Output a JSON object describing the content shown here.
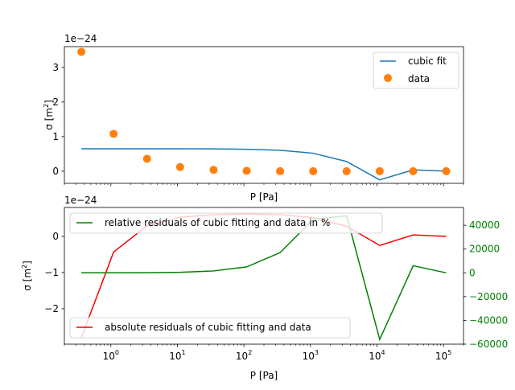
{
  "chart_data": [
    {
      "type": "line",
      "xscale": "log",
      "xlim": [
        0.2,
        200000
      ],
      "ylim": [
        -3.5e-25,
        3.6e-24
      ],
      "xlabel": "P [Pa]",
      "ylabel": "σ [m²]",
      "ylabel_base": "σ [m",
      "ylabel_sup": "2",
      "ylabel_end": "]",
      "offset_text": "1e−24",
      "x_ticklabels": [],
      "y_ticks": [
        0,
        1e-24,
        2e-24,
        3e-24
      ],
      "y_ticklabels": [
        "0",
        "1",
        "2",
        "3"
      ],
      "legend": {
        "position": "upper right",
        "entries": [
          "cubic fit",
          "data"
        ]
      },
      "grid": false,
      "series": [
        {
          "name": "cubic fit",
          "kind": "line",
          "color": "#1f77b4",
          "x": [
            0.36,
            1.1,
            3.5,
            11,
            35,
            110,
            350,
            1100,
            3500,
            11000,
            35000,
            110000
          ],
          "y": [
            6.5e-25,
            6.5e-25,
            6.5e-25,
            6.5e-25,
            6.45e-25,
            6.35e-25,
            6.05e-25,
            5.2e-25,
            2.8e-25,
            -2.5e-25,
            4e-26,
            0.0
          ]
        },
        {
          "name": "data",
          "kind": "scatter",
          "color": "#ff7f0e",
          "x": [
            0.36,
            1.1,
            3.5,
            11,
            35,
            110,
            350,
            1100,
            3500,
            11000,
            35000,
            110000
          ],
          "y": [
            3.45e-24,
            1.08e-24,
            3.6e-25,
            1.2e-25,
            4e-26,
            1.2e-26,
            0.0,
            0.0,
            0.0,
            0.0,
            0.0,
            0.0
          ]
        }
      ]
    },
    {
      "type": "line",
      "xscale": "log",
      "xlim": [
        0.2,
        200000
      ],
      "ylim": [
        -2.98e-24,
        8e-25
      ],
      "xlabel": "P [Pa]",
      "ylabel": "σ [m²]",
      "ylabel_base": "σ [m",
      "ylabel_sup": "2",
      "ylabel_end": "]",
      "offset_text": "1e−24",
      "x_ticks": [
        1,
        10,
        100,
        1000,
        10000,
        100000
      ],
      "x_tick_exponents": [
        "0",
        "1",
        "2",
        "3",
        "4",
        "5"
      ],
      "y_ticks": [
        -2e-24,
        -1e-24,
        0
      ],
      "y_ticklabels": [
        "−2",
        "−1",
        "0"
      ],
      "y2lim": [
        -60000,
        55000
      ],
      "y2_ticks": [
        -60000,
        -40000,
        -20000,
        0,
        20000,
        40000
      ],
      "y2_ticklabels": [
        "−60000",
        "−40000",
        "−20000",
        "0",
        "20000",
        "40000"
      ],
      "y2_color": "#008000",
      "legend": [
        {
          "position": "upper left",
          "entries": [
            "relative residuals of cubic fitting and data in %"
          ]
        },
        {
          "position": "lower left",
          "entries": [
            "absolute residuals of cubic fitting and data"
          ]
        }
      ],
      "grid": false,
      "series": [
        {
          "name": "absolute residuals of cubic fitting and data",
          "axis": "left",
          "color": "#ff0000",
          "x": [
            0.36,
            1.1,
            3.5,
            11,
            35,
            110,
            350,
            1100,
            3500,
            11000,
            35000,
            110000
          ],
          "y": [
            -2.8e-24,
            -4.3e-25,
            2.9e-25,
            5.3e-25,
            6e-25,
            6.2e-25,
            6e-25,
            5.2e-25,
            2.8e-25,
            -2.5e-25,
            4e-26,
            0.0
          ]
        },
        {
          "name": "relative residuals of cubic fitting and data in %",
          "axis": "right",
          "color": "#008000",
          "x": [
            0.36,
            1.1,
            3.5,
            11,
            35,
            110,
            350,
            1100,
            3500,
            11000,
            35000,
            110000
          ],
          "y": [
            0,
            0,
            100,
            500,
            1600,
            5000,
            17000,
            45000,
            48000,
            -56000,
            6000,
            0
          ]
        }
      ]
    }
  ]
}
